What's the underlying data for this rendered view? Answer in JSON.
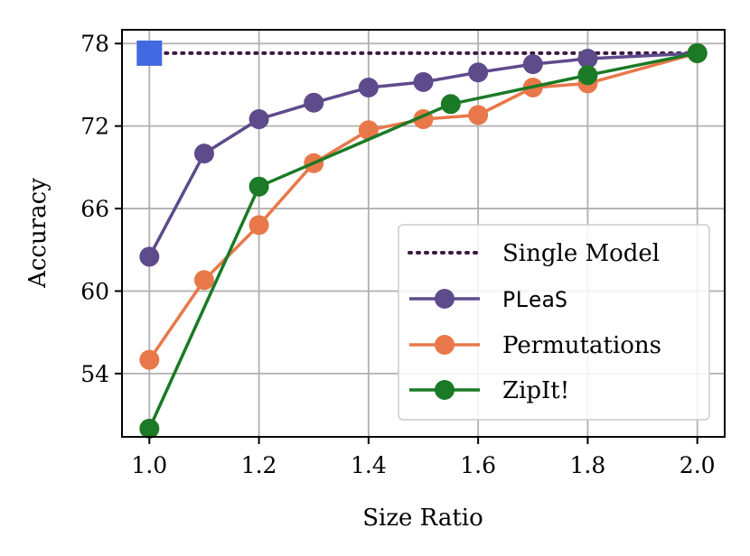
{
  "chart_data": {
    "type": "line",
    "title": "",
    "xlabel": "Size Ratio",
    "ylabel": "Accuracy",
    "xlim": [
      0.95,
      2.05
    ],
    "ylim": [
      49.4,
      79.0
    ],
    "xticks": [
      1.0,
      1.2,
      1.4,
      1.6,
      1.8,
      2.0
    ],
    "xtick_labels": [
      "1.0",
      "1.2",
      "1.4",
      "1.6",
      "1.8",
      "2.0"
    ],
    "yticks": [
      54,
      60,
      66,
      72,
      78
    ],
    "ytick_labels": [
      "54",
      "60",
      "66",
      "72",
      "78"
    ],
    "grid": true,
    "legend_position": "lower-right",
    "single_model_marker": {
      "x": 1.0,
      "y": 77.3,
      "color": "#4169e1"
    },
    "series": [
      {
        "name": "Single Model",
        "style": "dotted",
        "color": "#3b1a40",
        "x": [
          1.0,
          2.0
        ],
        "y": [
          77.3,
          77.3
        ]
      },
      {
        "name": "PLeaS",
        "style": "solid",
        "color": "#5e4b8b",
        "x": [
          1.0,
          1.1,
          1.2,
          1.3,
          1.4,
          1.5,
          1.6,
          1.7,
          1.8,
          2.0
        ],
        "y": [
          62.5,
          70.0,
          72.5,
          73.7,
          74.8,
          75.2,
          75.9,
          76.5,
          76.9,
          77.3
        ]
      },
      {
        "name": "Permutations",
        "style": "solid",
        "color": "#e8784a",
        "x": [
          1.0,
          1.1,
          1.2,
          1.3,
          1.4,
          1.5,
          1.6,
          1.7,
          1.8,
          2.0
        ],
        "y": [
          55.0,
          60.8,
          64.8,
          69.3,
          71.7,
          72.5,
          72.8,
          74.8,
          75.1,
          77.3
        ]
      },
      {
        "name": "ZipIt!",
        "style": "solid",
        "color": "#1a7a25",
        "x": [
          1.0,
          1.2,
          1.55,
          1.8,
          2.0
        ],
        "y": [
          50.0,
          67.6,
          73.6,
          75.7,
          77.3
        ]
      }
    ]
  }
}
